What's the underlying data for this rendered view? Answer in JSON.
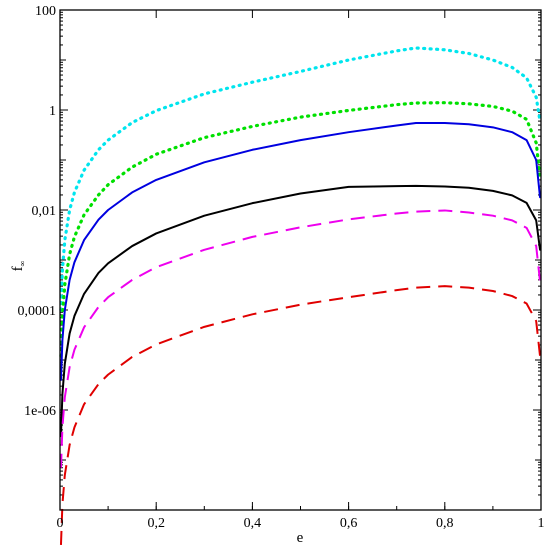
{
  "chart_data": {
    "type": "line",
    "title": "",
    "xlabel": "e",
    "ylabel": "f",
    "ylabel_subscript": "∞",
    "x_scale": "linear",
    "y_scale": "log",
    "xlim": [
      0,
      1
    ],
    "ylim": [
      1e-08,
      100
    ],
    "grid": false,
    "legend": "none",
    "x_ticks": [
      {
        "value": 0,
        "label": "0"
      },
      {
        "value": 0.2,
        "label": "0,2"
      },
      {
        "value": 0.4,
        "label": "0,4"
      },
      {
        "value": 0.6,
        "label": "0,6"
      },
      {
        "value": 0.8,
        "label": "0,8"
      },
      {
        "value": 1,
        "label": "1"
      }
    ],
    "y_ticks": [
      {
        "value": 1e-06,
        "label": "1e-06"
      },
      {
        "value": 0.0001,
        "label": "0,0001"
      },
      {
        "value": 0.01,
        "label": "0,01"
      },
      {
        "value": 1,
        "label": "1"
      },
      {
        "value": 100,
        "label": "100"
      }
    ],
    "series": [
      {
        "color": "#00e5ee",
        "style": "dotted",
        "x": [
          0.002,
          0.005,
          0.01,
          0.02,
          0.03,
          0.05,
          0.08,
          0.1,
          0.15,
          0.2,
          0.3,
          0.4,
          0.5,
          0.6,
          0.7,
          0.74,
          0.8,
          0.85,
          0.9,
          0.94,
          0.97,
          0.99,
          0.998
        ],
        "y": [
          0.0001,
          0.00063,
          0.0025,
          0.01,
          0.0225,
          0.0625,
          0.16,
          0.25,
          0.56,
          0.97,
          2.1,
          3.6,
          5.9,
          10.0,
          15.2,
          17.4,
          16.0,
          13.5,
          10.0,
          7.1,
          4.4,
          1.8,
          0.6
        ]
      },
      {
        "color": "#00e000",
        "style": "dotted",
        "x": [
          0.002,
          0.005,
          0.01,
          0.02,
          0.03,
          0.05,
          0.08,
          0.1,
          0.15,
          0.2,
          0.3,
          0.4,
          0.5,
          0.6,
          0.7,
          0.74,
          0.8,
          0.85,
          0.9,
          0.94,
          0.97,
          0.99,
          0.998
        ],
        "y": [
          1.2e-05,
          8e-05,
          0.00032,
          0.0013,
          0.0029,
          0.008,
          0.02,
          0.032,
          0.072,
          0.13,
          0.28,
          0.47,
          0.72,
          0.98,
          1.28,
          1.38,
          1.4,
          1.33,
          1.18,
          0.95,
          0.65,
          0.22,
          0.045
        ]
      },
      {
        "color": "#0000e0",
        "style": "solid",
        "x": [
          0.002,
          0.005,
          0.01,
          0.02,
          0.03,
          0.05,
          0.08,
          0.1,
          0.15,
          0.2,
          0.3,
          0.4,
          0.5,
          0.6,
          0.7,
          0.74,
          0.8,
          0.85,
          0.9,
          0.94,
          0.97,
          0.99,
          0.998
        ],
        "y": [
          4e-06,
          2.5e-05,
          0.0001,
          0.0004,
          0.0009,
          0.0025,
          0.0064,
          0.01,
          0.0225,
          0.04,
          0.09,
          0.16,
          0.25,
          0.36,
          0.49,
          0.55,
          0.55,
          0.52,
          0.45,
          0.36,
          0.25,
          0.1,
          0.018
        ]
      },
      {
        "color": "#000000",
        "style": "solid",
        "x": [
          0.002,
          0.005,
          0.01,
          0.02,
          0.03,
          0.05,
          0.08,
          0.1,
          0.15,
          0.2,
          0.3,
          0.4,
          0.5,
          0.6,
          0.7,
          0.74,
          0.8,
          0.85,
          0.9,
          0.94,
          0.97,
          0.99,
          0.998
        ],
        "y": [
          3e-07,
          2.1e-06,
          8.4e-06,
          3.4e-05,
          7.6e-05,
          0.00021,
          0.00055,
          0.00086,
          0.0019,
          0.0034,
          0.0077,
          0.0137,
          0.0214,
          0.029,
          0.03,
          0.0303,
          0.0296,
          0.0279,
          0.0241,
          0.0196,
          0.0139,
          0.0062,
          0.0016
        ]
      },
      {
        "color": "#ee00ee",
        "style": "dashed",
        "x": [
          0.002,
          0.005,
          0.01,
          0.02,
          0.03,
          0.05,
          0.08,
          0.1,
          0.15,
          0.2,
          0.3,
          0.4,
          0.5,
          0.6,
          0.7,
          0.74,
          0.8,
          0.85,
          0.9,
          0.94,
          0.97,
          0.99,
          0.998
        ],
        "y": [
          7e-08,
          4.5e-07,
          1.8e-06,
          7.2e-06,
          1.6e-05,
          4.5e-05,
          0.000115,
          0.00018,
          0.0004,
          0.00072,
          0.0016,
          0.0029,
          0.0045,
          0.0065,
          0.0085,
          0.0093,
          0.0098,
          0.0089,
          0.0077,
          0.0062,
          0.0044,
          0.0019,
          0.00037
        ]
      },
      {
        "color": "#e00000",
        "style": "dashed",
        "x": [
          0.002,
          0.005,
          0.01,
          0.02,
          0.03,
          0.05,
          0.08,
          0.1,
          0.15,
          0.2,
          0.3,
          0.4,
          0.5,
          0.6,
          0.7,
          0.74,
          0.8,
          0.85,
          0.9,
          0.94,
          0.97,
          0.99,
          0.998
        ],
        "y": [
          2e-09,
          1.3e-08,
          5e-08,
          2e-07,
          4.5e-07,
          1.3e-06,
          3.3e-06,
          5.1e-06,
          1.15e-05,
          2.05e-05,
          4.6e-05,
          8.2e-05,
          0.000128,
          0.00018,
          0.00025,
          0.00028,
          0.0003,
          0.00028,
          0.00024,
          0.00019,
          0.000135,
          6e-05,
          1.2e-05
        ]
      }
    ]
  }
}
